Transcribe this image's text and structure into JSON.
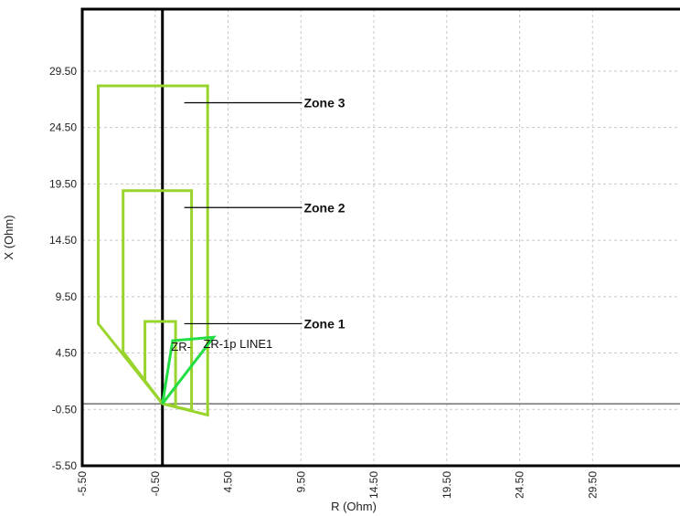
{
  "chart_data": {
    "type": "line",
    "xlabel": "R (Ohm)",
    "ylabel": "X (Ohm)",
    "xlim": [
      -5.5,
      35.5
    ],
    "ylim": [
      -5.5,
      35.0
    ],
    "xticks": [
      "-5.50",
      "-0.50",
      "4.50",
      "9.50",
      "14.50",
      "19.50",
      "24.50",
      "29.50"
    ],
    "xtick_values": [
      -5.5,
      -0.5,
      4.5,
      9.5,
      14.5,
      19.5,
      24.5,
      29.5
    ],
    "yticks": [
      "-5.50",
      "-0.50",
      "4.50",
      "9.50",
      "14.50",
      "19.50",
      "24.50",
      "29.50"
    ],
    "ytick_values": [
      -5.5,
      -0.5,
      4.5,
      9.5,
      14.5,
      19.5,
      24.5,
      29.5
    ],
    "grid": true,
    "series": [
      {
        "name": "Zone 3",
        "color": "#99d42c",
        "x": [
          0,
          -4.4,
          -4.4,
          3.1,
          3.1,
          0
        ],
        "y": [
          0,
          7.1,
          28.2,
          28.2,
          -1.0,
          0
        ]
      },
      {
        "name": "Zone 2",
        "color": "#99d42c",
        "x": [
          0,
          -2.7,
          -2.7,
          2.0,
          2.0,
          0
        ],
        "y": [
          0,
          4.6,
          18.9,
          18.9,
          -0.6,
          0
        ]
      },
      {
        "name": "Zone 1",
        "color": "#99d42c",
        "x": [
          0,
          -1.2,
          -1.2,
          0.9,
          0.9,
          0
        ],
        "y": [
          0,
          2.0,
          7.3,
          7.3,
          -0.2,
          0
        ]
      },
      {
        "name": "ZR-1p LINE1",
        "color": "#22dd44",
        "x": [
          0,
          0.7,
          3.5,
          0
        ],
        "y": [
          0,
          5.6,
          5.9,
          0
        ]
      }
    ],
    "annotations": [
      {
        "text": "Zone 3",
        "x": 1.5,
        "y": 26.7
      },
      {
        "text": "Zone 2",
        "x": 1.5,
        "y": 17.4
      },
      {
        "text": "Zone 1",
        "x": 1.5,
        "y": 7.1
      },
      {
        "text": "ZR-1p LINE1",
        "x": 0.6,
        "y": 5.1
      },
      {
        "text": "ZR-",
        "x": 0.6,
        "y": 4.7
      }
    ],
    "axis_lines": {
      "x": 0,
      "y": 0
    }
  }
}
